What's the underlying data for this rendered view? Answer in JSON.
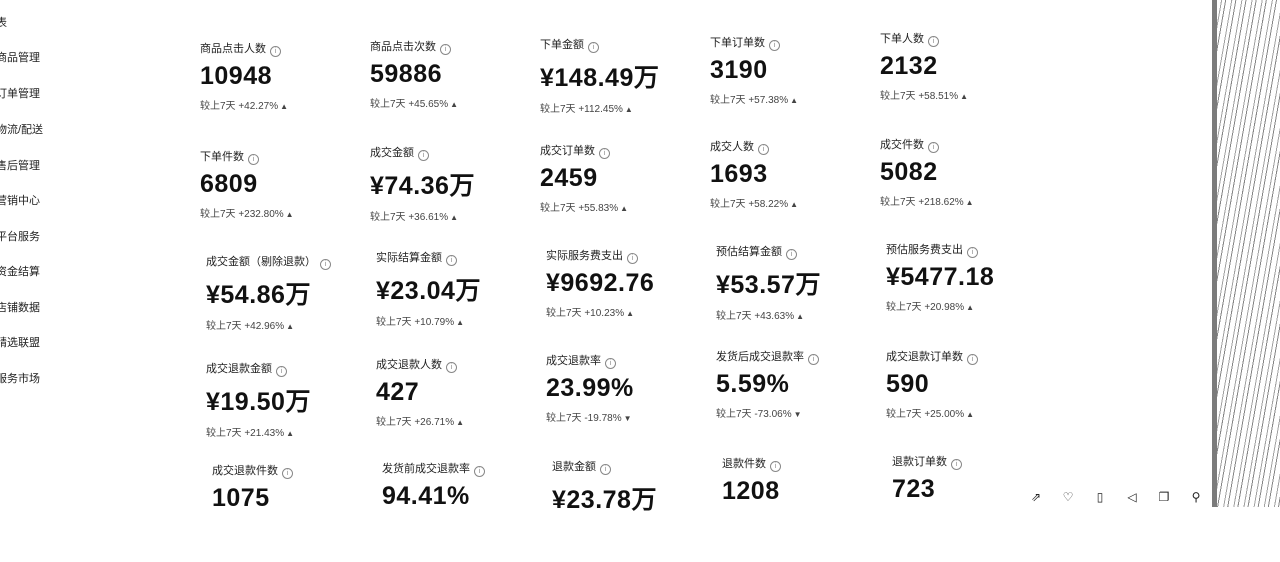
{
  "sidebar": {
    "items": [
      {
        "label": "表"
      },
      {
        "label": "商品管理"
      },
      {
        "label": "订单管理"
      },
      {
        "label": "物流/配送"
      },
      {
        "label": "售后管理"
      },
      {
        "label": "营销中心"
      },
      {
        "label": "平台服务"
      },
      {
        "label": "资金结算"
      },
      {
        "label": "店铺数据"
      },
      {
        "label": "精选联盟"
      },
      {
        "label": "服务市场"
      }
    ]
  },
  "metrics": [
    {
      "label": "商品点击人数",
      "value": "10948",
      "compare": "较上7天 +42.27%",
      "trend": "up"
    },
    {
      "label": "商品点击次数",
      "value": "59886",
      "compare": "较上7天 +45.65%",
      "trend": "up"
    },
    {
      "label": "下单金额",
      "value": "¥148.49万",
      "compare": "较上7天 +112.45%",
      "trend": "up"
    },
    {
      "label": "下单订单数",
      "value": "3190",
      "compare": "较上7天 +57.38%",
      "trend": "up"
    },
    {
      "label": "下单人数",
      "value": "2132",
      "compare": "较上7天 +58.51%",
      "trend": "up"
    },
    {
      "label": "下单件数",
      "value": "6809",
      "compare": "较上7天 +232.80%",
      "trend": "up"
    },
    {
      "label": "成交金额",
      "value": "¥74.36万",
      "compare": "较上7天 +36.61%",
      "trend": "up"
    },
    {
      "label": "成交订单数",
      "value": "2459",
      "compare": "较上7天 +55.83%",
      "trend": "up"
    },
    {
      "label": "成交人数",
      "value": "1693",
      "compare": "较上7天 +58.22%",
      "trend": "up"
    },
    {
      "label": "成交件数",
      "value": "5082",
      "compare": "较上7天 +218.62%",
      "trend": "up"
    },
    {
      "label": "成交金额（剔除退款）",
      "value": "¥54.86万",
      "compare": "较上7天 +42.96%",
      "trend": "up"
    },
    {
      "label": "实际结算金额",
      "value": "¥23.04万",
      "compare": "较上7天 +10.79%",
      "trend": "up"
    },
    {
      "label": "实际服务费支出",
      "value": "¥9692.76",
      "compare": "较上7天 +10.23%",
      "trend": "up"
    },
    {
      "label": "预估结算金额",
      "value": "¥53.57万",
      "compare": "较上7天 +43.63%",
      "trend": "up"
    },
    {
      "label": "预估服务费支出",
      "value": "¥5477.18",
      "compare": "较上7天 +20.98%",
      "trend": "up"
    },
    {
      "label": "成交退款金额",
      "value": "¥19.50万",
      "compare": "较上7天 +21.43%",
      "trend": "up"
    },
    {
      "label": "成交退款人数",
      "value": "427",
      "compare": "较上7天 +26.71%",
      "trend": "up"
    },
    {
      "label": "成交退款率",
      "value": "23.99%",
      "compare": "较上7天 -19.78%",
      "trend": "down"
    },
    {
      "label": "发货后成交退款率",
      "value": "5.59%",
      "compare": "较上7天 -73.06%",
      "trend": "down"
    },
    {
      "label": "成交退款订单数",
      "value": "590",
      "compare": "较上7天 +25.00%",
      "trend": "up"
    },
    {
      "label": "成交退款件数",
      "value": "1075",
      "compare": "",
      "trend": ""
    },
    {
      "label": "发货前成交退款率",
      "value": "94.41%",
      "compare": "",
      "trend": ""
    },
    {
      "label": "退款金额",
      "value": "¥23.78万",
      "compare": "",
      "trend": ""
    },
    {
      "label": "退款件数",
      "value": "1208",
      "compare": "",
      "trend": ""
    },
    {
      "label": "退款订单数",
      "value": "723",
      "compare": "",
      "trend": ""
    }
  ],
  "toolbar": {
    "icons": [
      "share-icon",
      "heart-icon",
      "clipboard-icon",
      "volume-icon",
      "copy-icon",
      "search-icon"
    ]
  }
}
